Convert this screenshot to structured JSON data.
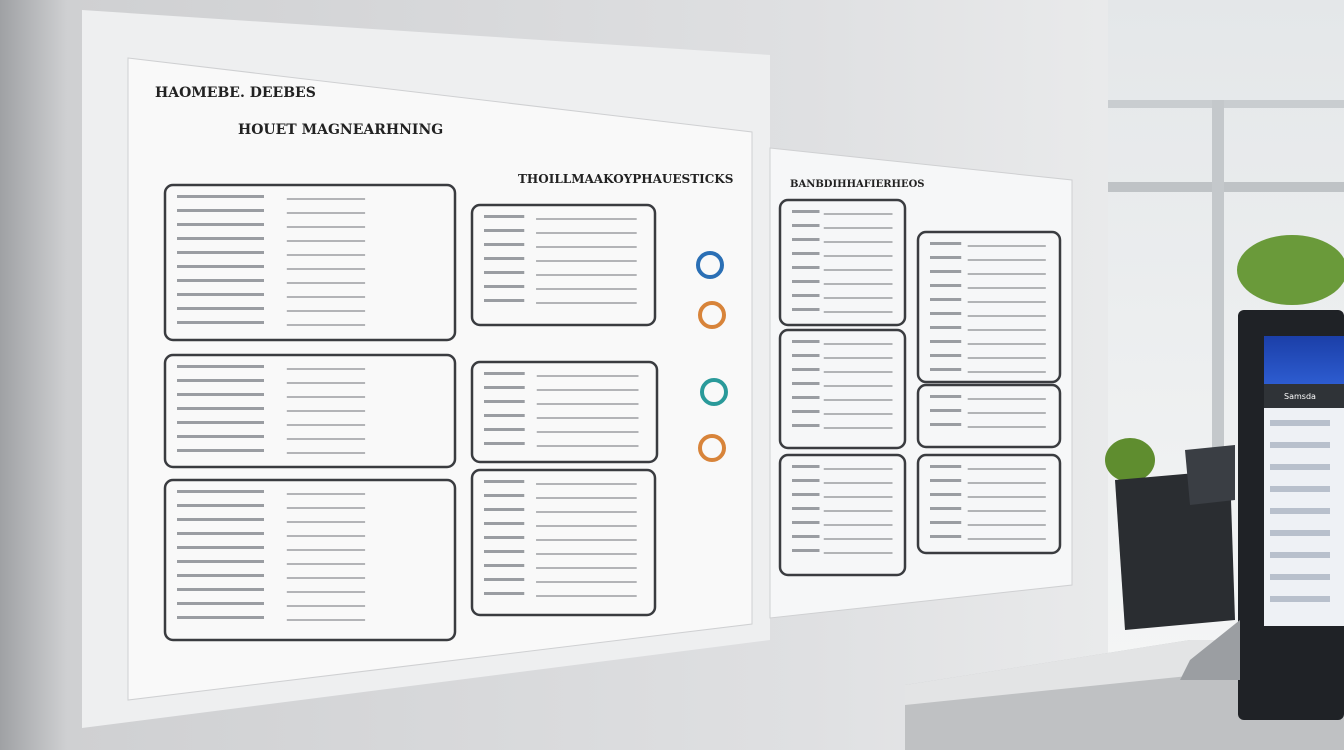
{
  "left_poster": {
    "title": "HAOMEBE. DEEBES",
    "subtitle": "HOUET MAGNEARHNING",
    "section_heading": "THOILLMAAKOYPHAUESTICKS"
  },
  "right_poster": {
    "title": "BANBDIHHAFIERHEOS"
  },
  "monitor": {
    "label": "Samsda"
  }
}
